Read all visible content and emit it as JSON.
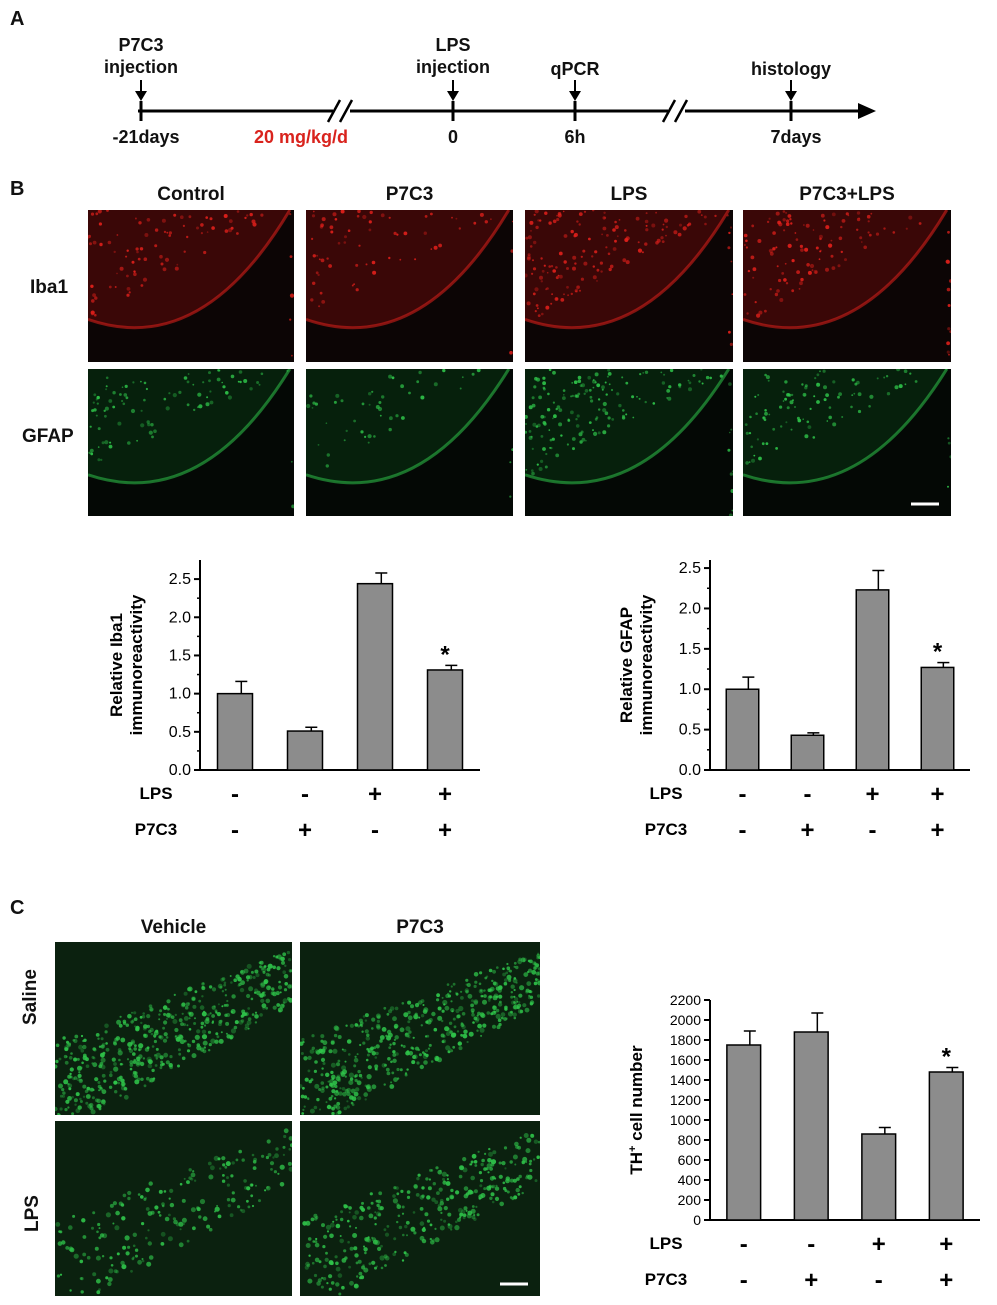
{
  "panels": {
    "a": "A",
    "b": "B",
    "c": "C"
  },
  "timeline": {
    "events": [
      {
        "id": "p7c3",
        "label_line1": "P7C3",
        "label_line2": "injection",
        "time": "-21days"
      },
      {
        "id": "lps",
        "label_line1": "LPS",
        "label_line2": "injection",
        "time": "0"
      },
      {
        "id": "qpcr",
        "label_line1": "qPCR",
        "label_line2": "",
        "time": "6h"
      },
      {
        "id": "histology",
        "label_line1": "histology",
        "label_line2": "",
        "time": "7days"
      }
    ],
    "dose": "20 mg/kg/d",
    "dose_color": "#d9231d"
  },
  "panel_b": {
    "columns": [
      "Control",
      "P7C3",
      "LPS",
      "P7C3+LPS"
    ],
    "rows": [
      "Iba1",
      "GFAP"
    ],
    "row_colors": {
      "Iba1": "#e0201b",
      "GFAP": "#2fc44a"
    }
  },
  "panel_c": {
    "columns": [
      "Vehicle",
      "P7C3"
    ],
    "rows": [
      "Saline",
      "LPS"
    ],
    "stain_color": "#2fc44a"
  },
  "condition_labels": {
    "lps": "LPS",
    "p7c3": "P7C3"
  },
  "chart_data": [
    {
      "id": "iba1",
      "type": "bar",
      "categories": [
        "LPS-/P7C3-",
        "LPS-/P7C3+",
        "LPS+/P7C3-",
        "LPS+/P7C3+"
      ],
      "values": [
        1.0,
        0.51,
        2.44,
        1.31
      ],
      "errors": [
        0.16,
        0.05,
        0.14,
        0.06
      ],
      "significance": [
        "",
        "",
        "",
        "*"
      ],
      "lps": [
        "-",
        "-",
        "+",
        "+"
      ],
      "p7c3": [
        "-",
        "+",
        "-",
        "+"
      ],
      "ylabel_line1": "Relative Iba1",
      "ylabel_line2": "immunoreactivity",
      "ylim": [
        0,
        2.75
      ],
      "yticks": [
        "0.0",
        "0.5",
        "1.0",
        "1.5",
        "2.0",
        "2.5"
      ],
      "bar_color": "#8c8c8c"
    },
    {
      "id": "gfap",
      "type": "bar",
      "categories": [
        "LPS-/P7C3-",
        "LPS-/P7C3+",
        "LPS+/P7C3-",
        "LPS+/P7C3+"
      ],
      "values": [
        1.0,
        0.43,
        2.23,
        1.27
      ],
      "errors": [
        0.15,
        0.03,
        0.24,
        0.06
      ],
      "significance": [
        "",
        "",
        "",
        "*"
      ],
      "lps": [
        "-",
        "-",
        "+",
        "+"
      ],
      "p7c3": [
        "-",
        "+",
        "-",
        "+"
      ],
      "ylabel_line1": "Relative GFAP",
      "ylabel_line2": "immunoreactivity",
      "ylim": [
        0,
        2.6
      ],
      "yticks": [
        "0.0",
        "0.5",
        "1.0",
        "1.5",
        "2.0",
        "2.5"
      ],
      "bar_color": "#8c8c8c"
    },
    {
      "id": "th",
      "type": "bar",
      "categories": [
        "LPS-/P7C3-",
        "LPS-/P7C3+",
        "LPS+/P7C3-",
        "LPS+/P7C3+"
      ],
      "values": [
        1750,
        1880,
        860,
        1480
      ],
      "errors": [
        140,
        190,
        65,
        45
      ],
      "significance": [
        "",
        "",
        "",
        "*"
      ],
      "lps": [
        "-",
        "-",
        "+",
        "+"
      ],
      "p7c3": [
        "-",
        "+",
        "-",
        "+"
      ],
      "ylabel_prefix": "TH",
      "ylabel_sup": "+",
      "ylabel_suffix": " cell number",
      "ylim": [
        0,
        2200
      ],
      "yticks": [
        "0",
        "200",
        "400",
        "600",
        "800",
        "1000",
        "1200",
        "1400",
        "1600",
        "1800",
        "2000",
        "2200"
      ],
      "bar_color": "#8c8c8c"
    }
  ]
}
